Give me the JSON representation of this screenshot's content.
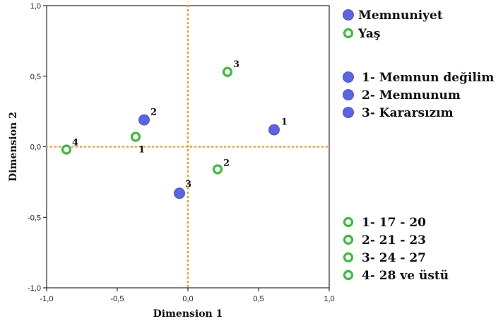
{
  "chart_data": {
    "type": "scatter",
    "xlabel": "Dimension 1",
    "ylabel": "Dimension 2",
    "xlim": [
      -1.0,
      1.0
    ],
    "ylim": [
      -1.0,
      1.0
    ],
    "xticks": [
      "-1,0",
      "-0,5",
      "0,0",
      "0,5",
      "1,0"
    ],
    "yticks": [
      "-1,0",
      "-0,5",
      "0,0",
      "0,5",
      "1,0"
    ],
    "reference_lines": {
      "x": 0,
      "y": 0,
      "color": "#f0a030",
      "style": "dotted"
    },
    "series": [
      {
        "name": "Memnuniyet",
        "marker": "filled-circle",
        "color": "#5b63e6",
        "points": [
          {
            "label": "1",
            "x": 0.61,
            "y": 0.12
          },
          {
            "label": "2",
            "x": -0.31,
            "y": 0.19
          },
          {
            "label": "3",
            "x": -0.06,
            "y": -0.33
          }
        ],
        "legend_items": [
          "1- Memnun değilim",
          "2- Memnunum",
          "3- Kararsızım"
        ]
      },
      {
        "name": "Yaş",
        "marker": "hollow-circle",
        "color": "#3dbb3d",
        "points": [
          {
            "label": "1",
            "x": -0.37,
            "y": 0.07
          },
          {
            "label": "2",
            "x": 0.21,
            "y": -0.16
          },
          {
            "label": "3",
            "x": 0.28,
            "y": 0.53
          },
          {
            "label": "4",
            "x": -0.86,
            "y": -0.02
          }
        ],
        "legend_items": [
          "1- 17 - 20",
          "2- 21 - 23",
          "3- 24 - 27",
          "4- 28 ve üstü"
        ]
      }
    ],
    "legend": "right"
  }
}
